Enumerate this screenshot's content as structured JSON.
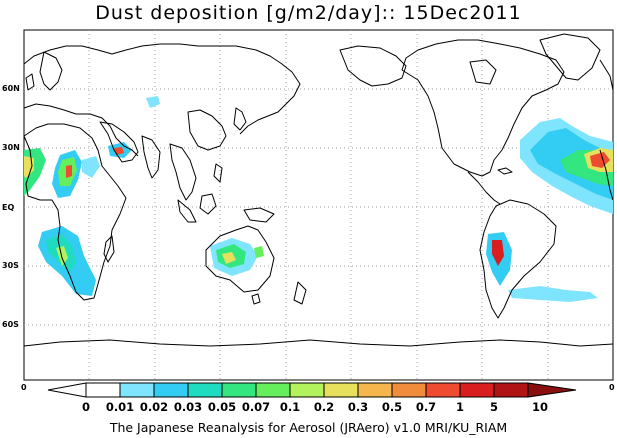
{
  "title": "Dust deposition [g/m2/day]:: 15Dec2011",
  "credit": "The Japanese Reanalysis for Aerosol (JRAero) v1.0 MRI/KU_RIAM",
  "lat_labels": [
    "60N",
    "30N",
    "EQ",
    "30S",
    "60S"
  ],
  "lon_edge_labels": [
    "0",
    "0"
  ],
  "colorbar": {
    "labels": [
      "0",
      "0.01",
      "0.02",
      "0.03",
      "0.05",
      "0.07",
      "0.1",
      "0.2",
      "0.3",
      "0.5",
      "0.7",
      "1",
      "5",
      "10"
    ],
    "colors": [
      "#ffffff",
      "#ffffff",
      "#7fe5ff",
      "#33ccf2",
      "#1fdcc0",
      "#33e680",
      "#66ef5c",
      "#b2f25c",
      "#e6e05c",
      "#f5b74d",
      "#f08c3c",
      "#ee4b30",
      "#d81e1e",
      "#b01414",
      "#8a1010"
    ]
  },
  "map_colors": {
    "coast": "#000000",
    "grid": "#a0a0a0"
  }
}
